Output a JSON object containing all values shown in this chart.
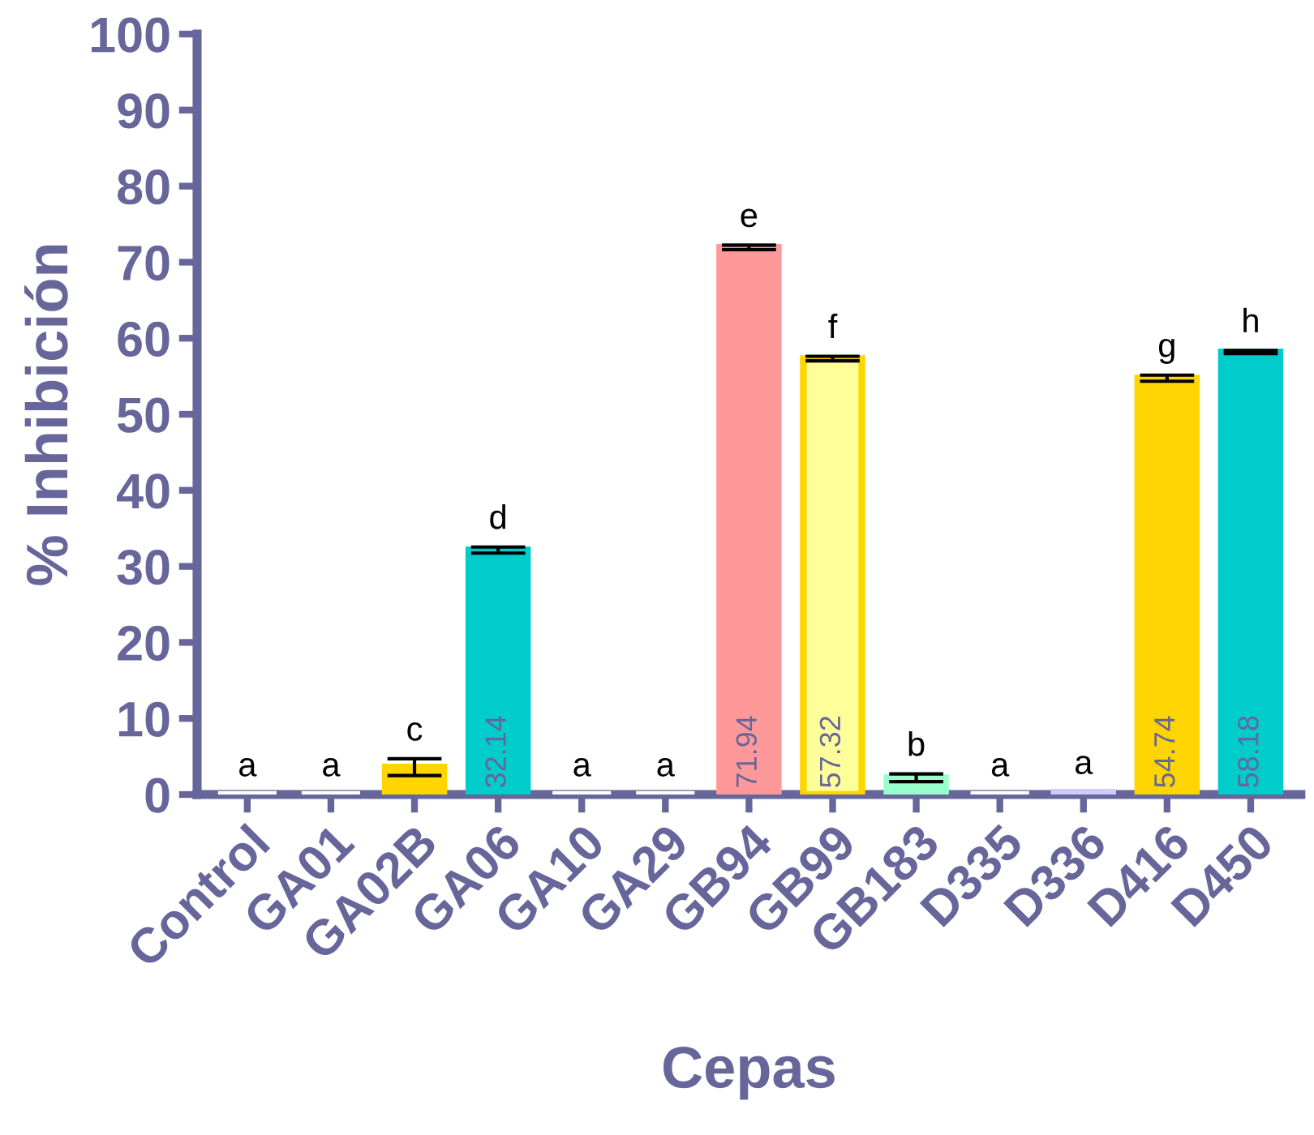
{
  "chart_data": {
    "type": "bar",
    "xlabel": "Cepas",
    "ylabel": "% Inhibición",
    "categories": [
      "Control",
      "GA01",
      "GA02B",
      "GA06",
      "GA10",
      "GA29",
      "GB94",
      "GB99",
      "GB183",
      "D335",
      "D336",
      "D416",
      "D450"
    ],
    "values": [
      0,
      0,
      3.6,
      32.14,
      0,
      0,
      71.94,
      57.32,
      2.2,
      0,
      0.3,
      54.74,
      58.18
    ],
    "errors": [
      null,
      null,
      1.1,
      0.4,
      null,
      null,
      0.3,
      0.3,
      0.5,
      null,
      null,
      0.4,
      0.2
    ],
    "colors": [
      "#ffffff",
      "#ffffff",
      "#ffd500",
      "#00cccc",
      "#ffffff",
      "#ffffff",
      "#ff9999",
      "#ffff99",
      "#99ffcc",
      "#ffffff",
      "#ccccff",
      "#ffd500",
      "#00cccc"
    ],
    "value_labels": [
      null,
      null,
      null,
      "32.14",
      null,
      null,
      "71.94",
      "57.32",
      null,
      null,
      null,
      "54.74",
      "58.18"
    ],
    "annotations": [
      {
        "text": "a",
        "x": "Control",
        "y": 0
      },
      {
        "text": "a",
        "x": "GA01",
        "y": 0
      },
      {
        "text": "c",
        "x": "GA02B",
        "y": 4.7
      },
      {
        "text": "d",
        "x": "GA06",
        "y": 32.54
      },
      {
        "text": "a",
        "x": "GA10",
        "y": 0
      },
      {
        "text": "a",
        "x": "GA29",
        "y": 0
      },
      {
        "text": "e",
        "x": "GB94",
        "y": 72.24
      },
      {
        "text": "f",
        "x": "GB99",
        "y": 57.62
      },
      {
        "text": "b",
        "x": "GB183",
        "y": 2.7
      },
      {
        "text": "a",
        "x": "D335",
        "y": 0
      },
      {
        "text": "a",
        "x": "D336",
        "y": 0.3
      },
      {
        "text": "g",
        "x": "D416",
        "y": 55.14
      },
      {
        "text": "h",
        "x": "D450",
        "y": 58.38
      }
    ],
    "ylim": [
      0,
      100
    ],
    "yticks": [
      0,
      10,
      20,
      30,
      40,
      50,
      60,
      70,
      80,
      90,
      100
    ],
    "grid": false,
    "legend": false
  }
}
